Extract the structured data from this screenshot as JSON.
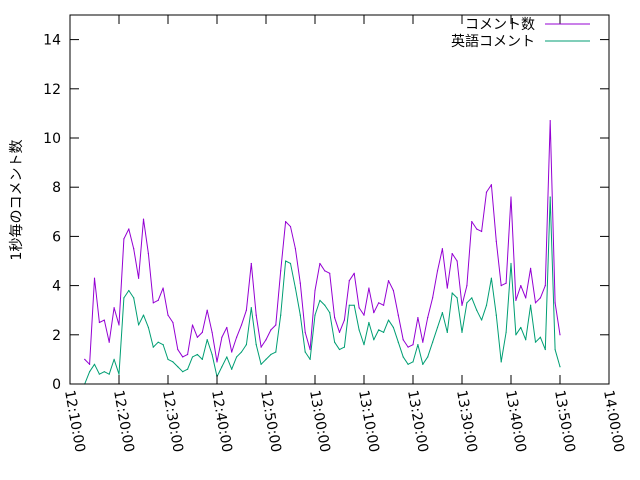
{
  "chart_data": {
    "type": "line",
    "title": "",
    "xlabel": "",
    "ylabel": "1秒毎のコメント数",
    "xlim": [
      "12:10:00",
      "14:00:00"
    ],
    "x_ticks": [
      "12:10:00",
      "12:20:00",
      "12:30:00",
      "12:40:00",
      "12:50:00",
      "13:00:00",
      "13:10:00",
      "13:20:00",
      "13:30:00",
      "13:40:00",
      "13:50:00",
      "14:00:00"
    ],
    "ylim": [
      0,
      15
    ],
    "y_ticks": [
      "0",
      "2",
      "4",
      "6",
      "8",
      "10",
      "12",
      "14"
    ],
    "grid": false,
    "legend_position": "top-right",
    "x": [
      "12:13:00",
      "12:14:00",
      "12:15:00",
      "12:16:00",
      "12:17:00",
      "12:18:00",
      "12:19:00",
      "12:20:00",
      "12:21:00",
      "12:22:00",
      "12:23:00",
      "12:24:00",
      "12:25:00",
      "12:26:00",
      "12:27:00",
      "12:28:00",
      "12:29:00",
      "12:30:00",
      "12:31:00",
      "12:32:00",
      "12:33:00",
      "12:34:00",
      "12:35:00",
      "12:36:00",
      "12:37:00",
      "12:38:00",
      "12:39:00",
      "12:40:00",
      "12:41:00",
      "12:42:00",
      "12:43:00",
      "12:44:00",
      "12:45:00",
      "12:46:00",
      "12:47:00",
      "12:48:00",
      "12:49:00",
      "12:50:00",
      "12:51:00",
      "12:52:00",
      "12:53:00",
      "12:54:00",
      "12:55:00",
      "12:56:00",
      "12:57:00",
      "12:58:00",
      "12:59:00",
      "13:00:00",
      "13:01:00",
      "13:02:00",
      "13:03:00",
      "13:04:00",
      "13:05:00",
      "13:06:00",
      "13:07:00",
      "13:08:00",
      "13:09:00",
      "13:10:00",
      "13:11:00",
      "13:12:00",
      "13:13:00",
      "13:14:00",
      "13:15:00",
      "13:16:00",
      "13:17:00",
      "13:18:00",
      "13:19:00",
      "13:20:00",
      "13:21:00",
      "13:22:00",
      "13:23:00",
      "13:24:00",
      "13:25:00",
      "13:26:00",
      "13:27:00",
      "13:28:00",
      "13:29:00",
      "13:30:00",
      "13:31:00",
      "13:32:00",
      "13:33:00",
      "13:34:00",
      "13:35:00",
      "13:36:00",
      "13:37:00",
      "13:38:00",
      "13:39:00",
      "13:40:00",
      "13:41:00",
      "13:42:00",
      "13:43:00",
      "13:44:00",
      "13:45:00",
      "13:46:00",
      "13:47:00",
      "13:48:00",
      "13:49:00",
      "13:50:00"
    ],
    "series": [
      {
        "name": "コメント数",
        "color": "#9400d3",
        "values": [
          1.0,
          0.8,
          4.3,
          2.5,
          2.6,
          1.7,
          3.1,
          2.4,
          5.9,
          6.3,
          5.5,
          4.3,
          6.7,
          5.3,
          3.3,
          3.4,
          3.9,
          2.8,
          2.5,
          1.4,
          1.1,
          1.2,
          2.4,
          1.9,
          2.1,
          3.0,
          2.1,
          0.9,
          1.9,
          2.3,
          1.3,
          1.9,
          2.4,
          3.0,
          4.9,
          2.8,
          1.5,
          1.8,
          2.2,
          2.4,
          4.6,
          6.6,
          6.4,
          5.5,
          4.1,
          2.1,
          1.4,
          3.8,
          4.9,
          4.6,
          4.5,
          2.7,
          2.1,
          2.6,
          4.2,
          4.5,
          3.1,
          2.8,
          3.9,
          2.9,
          3.3,
          3.2,
          4.2,
          3.8,
          2.8,
          1.8,
          1.5,
          1.6,
          2.7,
          1.7,
          2.7,
          3.5,
          4.6,
          5.5,
          3.9,
          5.3,
          5.0,
          3.2,
          4.0,
          6.6,
          6.3,
          6.2,
          7.8,
          8.1,
          5.8,
          4.0,
          4.1,
          7.6,
          3.4,
          4.0,
          3.5,
          4.7,
          3.3,
          3.5,
          4.0,
          10.7,
          3.3,
          2.0
        ]
      },
      {
        "name": "英語コメント",
        "color": "#009e73",
        "values": [
          0.0,
          0.5,
          0.8,
          0.4,
          0.5,
          0.4,
          1.0,
          0.4,
          3.5,
          3.8,
          3.5,
          2.4,
          2.8,
          2.3,
          1.5,
          1.7,
          1.6,
          1.0,
          0.9,
          0.7,
          0.5,
          0.6,
          1.1,
          1.2,
          1.0,
          1.8,
          1.2,
          0.3,
          0.7,
          1.1,
          0.6,
          1.1,
          1.3,
          1.6,
          3.1,
          1.6,
          0.8,
          1.0,
          1.2,
          1.3,
          2.8,
          5.0,
          4.9,
          3.9,
          2.8,
          1.3,
          1.0,
          2.8,
          3.4,
          3.2,
          2.9,
          1.7,
          1.4,
          1.5,
          3.2,
          3.2,
          2.2,
          1.6,
          2.5,
          1.8,
          2.2,
          2.1,
          2.6,
          2.3,
          1.7,
          1.1,
          0.8,
          0.9,
          1.6,
          0.8,
          1.1,
          1.7,
          2.3,
          2.9,
          2.1,
          3.7,
          3.5,
          2.1,
          3.3,
          3.5,
          3.0,
          2.6,
          3.2,
          4.3,
          2.8,
          0.9,
          2.1,
          4.9,
          2.0,
          2.3,
          1.8,
          3.2,
          1.7,
          1.9,
          1.4,
          7.6,
          1.4,
          0.7
        ]
      }
    ]
  }
}
